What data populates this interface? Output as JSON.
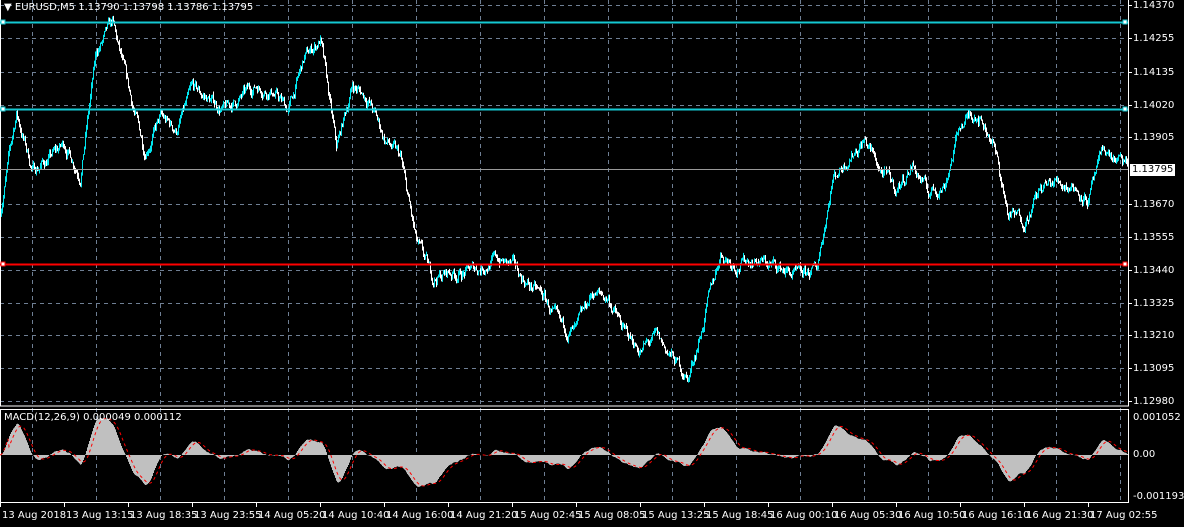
{
  "header": {
    "symbol": "EURUSD,M5",
    "open": "1.13790",
    "high": "1.13798",
    "low": "1.13786",
    "close": "1.13795"
  },
  "colors": {
    "up": "#00e5ee",
    "down": "#ffffff",
    "grid": "#6f7f94",
    "hline_cyan": "#14c8d2",
    "hline_red": "#ff0000",
    "macd_hist": "#c0c0c0",
    "macd_signal": "#ff0000"
  },
  "price_axis": {
    "labels": [
      "1.14370",
      "1.14255",
      "1.14135",
      "1.14020",
      "1.13905",
      "1.13670",
      "1.13555",
      "1.13440",
      "1.13325",
      "1.13210",
      "1.13095",
      "1.12980"
    ],
    "current": "1.13795",
    "range": [
      1.1298,
      1.1437
    ]
  },
  "horizontal_lines": [
    {
      "price": 1.1431,
      "color": "#14c8d2"
    },
    {
      "price": 1.14005,
      "color": "#14c8d2"
    },
    {
      "price": 1.13461,
      "color": "#ff0000"
    }
  ],
  "macd": {
    "title": "MACD(12,26,9)",
    "main": "0.000049",
    "signal": "0.000112",
    "axis_labels": [
      "0.001052",
      "0.00",
      "-0.001193"
    ],
    "range": [
      -0.001193,
      0.001052
    ]
  },
  "time_axis": {
    "labels": [
      "13 Aug 2018",
      "13 Aug 13:15",
      "13 Aug 18:35",
      "13 Aug 23:55",
      "14 Aug 05:20",
      "14 Aug 10:40",
      "14 Aug 16:00",
      "14 Aug 21:20",
      "15 Aug 02:45",
      "15 Aug 08:05",
      "15 Aug 13:25",
      "15 Aug 18:45",
      "16 Aug 00:10",
      "16 Aug 05:30",
      "16 Aug 10:50",
      "16 Aug 16:10",
      "16 Aug 21:30",
      "17 Aug 02:55"
    ]
  },
  "chart_data": {
    "type": "bar",
    "timeframe": "M5",
    "close_path": [
      1.1365,
      1.1399,
      1.1379,
      1.1383,
      1.1388,
      1.1378,
      1.142,
      1.143,
      1.1407,
      1.1386,
      1.1397,
      1.1393,
      1.1407,
      1.1404,
      1.14,
      1.1404,
      1.1409,
      1.1407,
      1.14,
      1.1418,
      1.1425,
      1.1386,
      1.1409,
      1.1404,
      1.139,
      1.1383,
      1.1353,
      1.1341,
      1.1343,
      1.1343,
      1.1345,
      1.1348,
      1.1345,
      1.1339,
      1.1334,
      1.1323,
      1.1322,
      1.1336,
      1.1334,
      1.1322,
      1.1316,
      1.132,
      1.1313,
      1.1306,
      1.1327,
      1.135,
      1.1346,
      1.1348,
      1.1346,
      1.1344,
      1.1341,
      1.1344,
      1.1376,
      1.1384,
      1.139,
      1.1379,
      1.1372,
      1.1381,
      1.1371,
      1.1374,
      1.1395,
      1.14,
      1.139,
      1.1363,
      1.1362,
      1.1372,
      1.1375,
      1.1374,
      1.1369,
      1.1386,
      1.1381,
      1.13795
    ]
  }
}
